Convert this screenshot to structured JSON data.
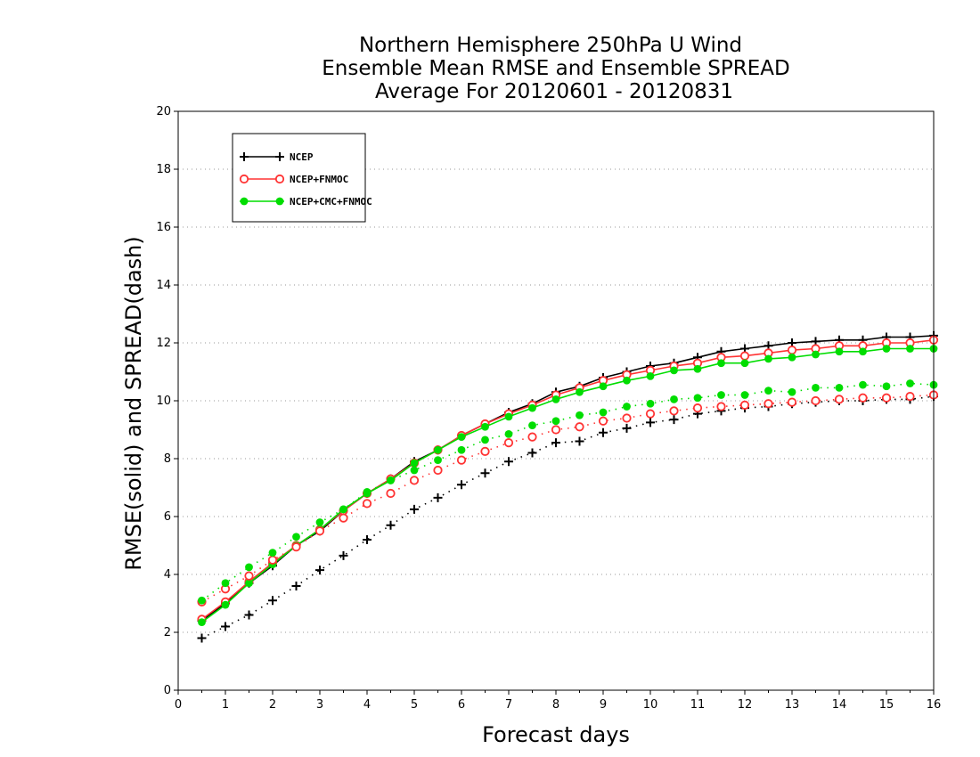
{
  "colors": {
    "NCEP": "#000000",
    "NCEP+FNMOC": "#ff3333",
    "NCEP+CMC+FNMOC": "#00dd00",
    "grid": "#9a9a9a",
    "frame": "#000000"
  },
  "chart_data": {
    "type": "line",
    "title": [
      "Northern Hemisphere 250hPa U Wind",
      "Ensemble Mean RMSE and Ensemble SPREAD",
      "Average For 20120601 - 20120831"
    ],
    "xlabel": "Forecast days",
    "ylabel": "RMSE(solid) and SPREAD(dash)",
    "xlim": [
      0,
      16
    ],
    "ylim": [
      0,
      20
    ],
    "xticks": [
      0,
      1,
      2,
      3,
      4,
      5,
      6,
      7,
      8,
      9,
      10,
      11,
      12,
      13,
      14,
      15,
      16
    ],
    "yticks": [
      0,
      2,
      4,
      6,
      8,
      10,
      12,
      14,
      16,
      18,
      20
    ],
    "grid": "horizontal dotted",
    "legend_position": "top-left",
    "x": [
      0.5,
      1,
      1.5,
      2,
      2.5,
      3,
      3.5,
      4,
      4.5,
      5,
      5.5,
      6,
      6.5,
      7,
      7.5,
      8,
      8.5,
      9,
      9.5,
      10,
      10.5,
      11,
      11.5,
      12,
      12.5,
      13,
      13.5,
      14,
      14.5,
      15,
      15.5,
      16
    ],
    "series": [
      {
        "name": "NCEP",
        "metric": "RMSE",
        "linestyle": "solid",
        "marker": "plus",
        "values": [
          2.4,
          3.0,
          3.7,
          4.3,
          5.0,
          5.5,
          6.2,
          6.8,
          7.3,
          7.9,
          8.3,
          8.8,
          9.2,
          9.6,
          9.9,
          10.3,
          10.5,
          10.8,
          11.0,
          11.2,
          11.3,
          11.5,
          11.7,
          11.8,
          11.9,
          12.0,
          12.05,
          12.1,
          12.1,
          12.2,
          12.2,
          12.25
        ]
      },
      {
        "name": "NCEP+FNMOC",
        "metric": "RMSE",
        "linestyle": "solid",
        "marker": "open-circle",
        "values": [
          2.45,
          3.05,
          3.75,
          4.4,
          5.0,
          5.55,
          6.2,
          6.8,
          7.3,
          7.85,
          8.3,
          8.8,
          9.2,
          9.55,
          9.85,
          10.2,
          10.45,
          10.7,
          10.9,
          11.05,
          11.2,
          11.3,
          11.5,
          11.55,
          11.65,
          11.75,
          11.8,
          11.9,
          11.9,
          12.0,
          12.0,
          12.1
        ]
      },
      {
        "name": "NCEP+CMC+FNMOC",
        "metric": "RMSE",
        "linestyle": "solid",
        "marker": "filled-circle",
        "values": [
          2.35,
          2.95,
          3.7,
          4.35,
          5.0,
          5.55,
          6.25,
          6.8,
          7.25,
          7.85,
          8.3,
          8.75,
          9.1,
          9.45,
          9.75,
          10.05,
          10.3,
          10.5,
          10.7,
          10.85,
          11.05,
          11.1,
          11.3,
          11.3,
          11.45,
          11.5,
          11.6,
          11.7,
          11.7,
          11.8,
          11.8,
          11.8
        ]
      },
      {
        "name": "NCEP",
        "metric": "SPREAD",
        "linestyle": "dash",
        "marker": "plus",
        "values": [
          1.8,
          2.2,
          2.6,
          3.1,
          3.6,
          4.15,
          4.65,
          5.2,
          5.7,
          6.25,
          6.65,
          7.1,
          7.5,
          7.9,
          8.2,
          8.55,
          8.6,
          8.9,
          9.05,
          9.25,
          9.35,
          9.55,
          9.65,
          9.75,
          9.8,
          9.9,
          9.95,
          10.0,
          10.0,
          10.05,
          10.05,
          10.15
        ]
      },
      {
        "name": "NCEP+FNMOC",
        "metric": "SPREAD",
        "linestyle": "dash",
        "marker": "open-circle",
        "values": [
          3.05,
          3.5,
          3.95,
          4.5,
          4.95,
          5.5,
          5.95,
          6.45,
          6.8,
          7.25,
          7.6,
          7.95,
          8.25,
          8.55,
          8.75,
          9.0,
          9.1,
          9.3,
          9.4,
          9.55,
          9.65,
          9.75,
          9.8,
          9.85,
          9.9,
          9.95,
          10.0,
          10.05,
          10.1,
          10.1,
          10.15,
          10.2
        ]
      },
      {
        "name": "NCEP+CMC+FNMOC",
        "metric": "SPREAD",
        "linestyle": "dash",
        "marker": "filled-circle",
        "values": [
          3.1,
          3.7,
          4.25,
          4.75,
          5.3,
          5.8,
          6.25,
          6.85,
          7.25,
          7.6,
          7.95,
          8.3,
          8.65,
          8.85,
          9.15,
          9.3,
          9.5,
          9.6,
          9.8,
          9.9,
          10.05,
          10.1,
          10.2,
          10.2,
          10.35,
          10.3,
          10.45,
          10.45,
          10.55,
          10.5,
          10.6,
          10.55
        ]
      }
    ],
    "legend": [
      "NCEP",
      "NCEP+FNMOC",
      "NCEP+CMC+FNMOC"
    ]
  }
}
